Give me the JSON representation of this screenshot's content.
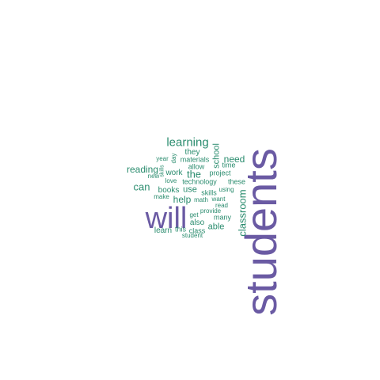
{
  "colors": {
    "accent_purple": "#6a5aa3",
    "accent_teal": "#2a8c6e",
    "background": "#ffffff"
  },
  "words": {
    "students": "students",
    "will": "will",
    "learning": "learning",
    "classroom": "classroom",
    "school": "school",
    "need": "need",
    "they": "they",
    "day": "day",
    "year": "year",
    "materials": "materials",
    "allow": "allow",
    "time": "time",
    "reading": "reading",
    "skills": "skills",
    "new": "new",
    "work": "work",
    "the": "the",
    "project": "project",
    "love": "love",
    "technology": "technology",
    "these": "these",
    "can": "can",
    "books": "books",
    "use": "use",
    "using": "using",
    "make": "make",
    "help": "help",
    "math": "math",
    "want": "want",
    "read": "read",
    "provide": "provide",
    "get": "get",
    "many": "many",
    "also": "also",
    "able": "able",
    "learn": "learn",
    "this": "this",
    "class": "class",
    "student": "student",
    "skills_vert": "skills"
  }
}
